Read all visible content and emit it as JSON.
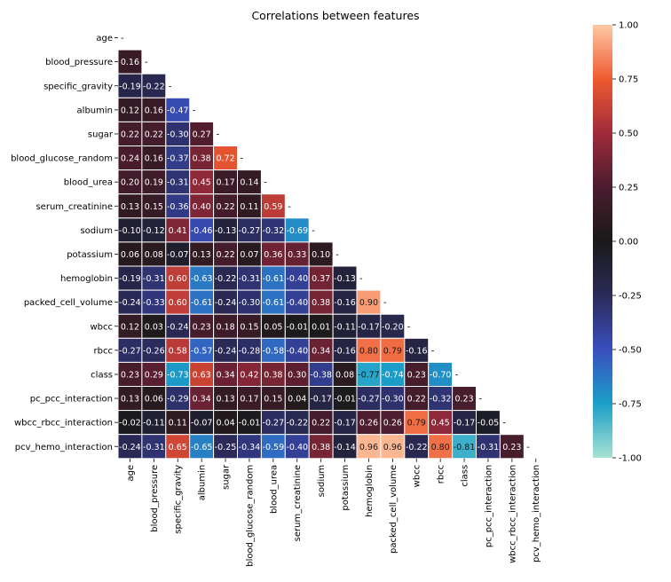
{
  "chart_data": {
    "type": "heatmap",
    "title": "Correlations between features",
    "xlabel": "",
    "ylabel": "",
    "features": [
      "age",
      "blood_pressure",
      "specific_gravity",
      "albumin",
      "sugar",
      "blood_glucose_random",
      "blood_urea",
      "serum_creatinine",
      "sodium",
      "potassium",
      "hemoglobin",
      "packed_cell_volume",
      "wbcc",
      "rbcc",
      "class",
      "pc_pcc_interaction",
      "wbcc_rbcc_interaction",
      "pcv_hemo_interaction"
    ],
    "diagonal_label": "-",
    "lower_triangle": [
      [],
      [
        0.16
      ],
      [
        -0.19,
        -0.22
      ],
      [
        0.12,
        0.16,
        -0.47
      ],
      [
        0.22,
        0.22,
        -0.3,
        0.27
      ],
      [
        0.24,
        0.16,
        -0.37,
        0.38,
        0.72
      ],
      [
        0.2,
        0.19,
        -0.31,
        0.45,
        0.17,
        0.14
      ],
      [
        0.13,
        0.15,
        -0.36,
        0.4,
        0.22,
        0.11,
        0.59
      ],
      [
        -0.1,
        -0.12,
        0.41,
        -0.46,
        -0.13,
        -0.27,
        -0.32,
        -0.69
      ],
      [
        0.06,
        0.08,
        -0.07,
        0.13,
        0.22,
        0.07,
        0.36,
        0.33,
        0.1
      ],
      [
        -0.19,
        -0.31,
        0.6,
        -0.63,
        -0.22,
        -0.31,
        -0.61,
        -0.4,
        0.37,
        -0.13
      ],
      [
        -0.24,
        -0.33,
        0.6,
        -0.61,
        -0.24,
        -0.3,
        -0.61,
        -0.4,
        0.38,
        -0.16,
        0.9
      ],
      [
        0.12,
        0.03,
        -0.24,
        0.23,
        0.18,
        0.15,
        0.05,
        -0.01,
        0.01,
        -0.11,
        -0.17,
        -0.2
      ],
      [
        -0.27,
        -0.26,
        0.58,
        -0.57,
        -0.24,
        -0.28,
        -0.58,
        -0.4,
        0.34,
        -0.16,
        0.8,
        0.79,
        -0.16
      ],
      [
        0.23,
        0.29,
        -0.73,
        0.63,
        0.34,
        0.42,
        0.38,
        0.3,
        -0.38,
        0.08,
        -0.77,
        -0.74,
        0.23,
        -0.7
      ],
      [
        0.13,
        0.06,
        -0.29,
        0.34,
        0.13,
        0.17,
        0.15,
        0.04,
        -0.17,
        -0.01,
        -0.27,
        -0.3,
        0.22,
        -0.32,
        0.23
      ],
      [
        -0.02,
        -0.11,
        0.11,
        -0.07,
        0.04,
        -0.01,
        -0.27,
        -0.22,
        0.22,
        -0.17,
        0.26,
        0.26,
        0.79,
        0.45,
        -0.17,
        -0.05
      ],
      [
        -0.24,
        -0.31,
        0.65,
        -0.65,
        -0.25,
        -0.34,
        -0.59,
        -0.4,
        0.38,
        -0.14,
        0.96,
        0.96,
        -0.22,
        0.8,
        -0.81,
        -0.31,
        0.23
      ]
    ],
    "colorbar": {
      "range": [
        -1.0,
        1.0
      ],
      "ticks": [
        -1.0,
        -0.75,
        -0.5,
        -0.25,
        0.0,
        0.25,
        0.5,
        0.75,
        1.0
      ],
      "tick_labels": [
        "-1.00",
        "-0.75",
        "-0.50",
        "-0.25",
        "0.00",
        "0.25",
        "0.50",
        "0.75",
        "1.00"
      ]
    },
    "colormap": "icefire",
    "colormap_stops": [
      {
        "v": -1.0,
        "color": "#a8e2d2"
      },
      {
        "v": -0.75,
        "color": "#1b9fc8"
      },
      {
        "v": -0.5,
        "color": "#3a4fbe"
      },
      {
        "v": -0.25,
        "color": "#2b2a59"
      },
      {
        "v": 0.0,
        "color": "#1a1a1a"
      },
      {
        "v": 0.25,
        "color": "#4b1c2e"
      },
      {
        "v": 0.5,
        "color": "#a02b3b"
      },
      {
        "v": 0.75,
        "color": "#ee5a30"
      },
      {
        "v": 1.0,
        "color": "#fec8a5"
      }
    ],
    "grid": false,
    "legend": "right"
  }
}
